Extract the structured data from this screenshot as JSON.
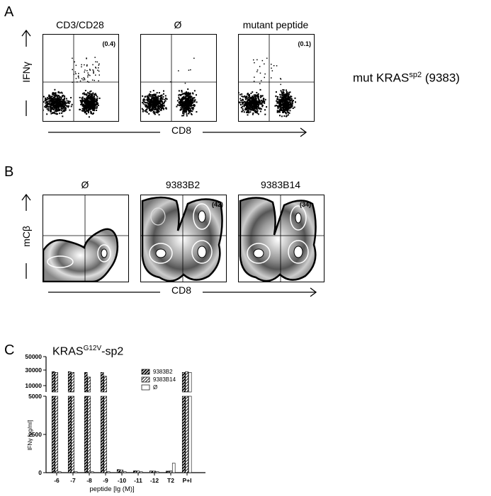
{
  "panel_a": {
    "letter": "A",
    "titles": [
      "CD3/CD28",
      "Ø",
      "mutant peptide"
    ],
    "y_label": "IFNγ",
    "x_label": "CD8",
    "quadrant_pcts": [
      "(0.4)",
      "",
      "(0.1)"
    ],
    "side_label_main": "mut KRAS",
    "side_label_sup": "sp2",
    "side_label_tail": " (9383)"
  },
  "panel_b": {
    "letter": "B",
    "titles": [
      "Ø",
      "9383B2",
      "9383B14"
    ],
    "y_label": "mCβ",
    "x_label": "CD8",
    "quadrant_pcts": [
      "",
      "(42)",
      "(34)"
    ]
  },
  "panel_c": {
    "letter": "C",
    "title_main": "KRAS",
    "title_sup": "G12V",
    "title_tail": "-sp2",
    "ylabel": "IFNγ [pg/ml]",
    "xlabel": "peptide  [lg (M)]",
    "upper_ticks": [
      "50000",
      "30000",
      "10000"
    ],
    "lower_ticks": [
      "5000",
      "2500",
      "0"
    ]
  },
  "chart_data": {
    "type": "bar",
    "title": "KRASG12V-sp2",
    "xlabel": "peptide  [lg (M)]",
    "ylabel": "IFNγ [pg/ml]",
    "categories": [
      "-6",
      "-7",
      "-8",
      "-9",
      "-10",
      "-11",
      "-12",
      "T2",
      "P+I"
    ],
    "series": [
      {
        "name": "9383B2",
        "values": [
          28000,
          28000,
          27000,
          27000,
          200,
          120,
          110,
          100,
          27000
        ]
      },
      {
        "name": "9383B14",
        "values": [
          27000,
          27000,
          21000,
          22000,
          180,
          110,
          100,
          110,
          28000
        ]
      },
      {
        "name": "Ø",
        "values": [
          60,
          60,
          60,
          60,
          60,
          60,
          60,
          620,
          27000
        ]
      }
    ],
    "ylim": [
      0,
      50000
    ],
    "axis_break": {
      "lower": [
        0,
        5000
      ],
      "upper": [
        5000,
        50000
      ]
    },
    "legend": "top-right"
  }
}
